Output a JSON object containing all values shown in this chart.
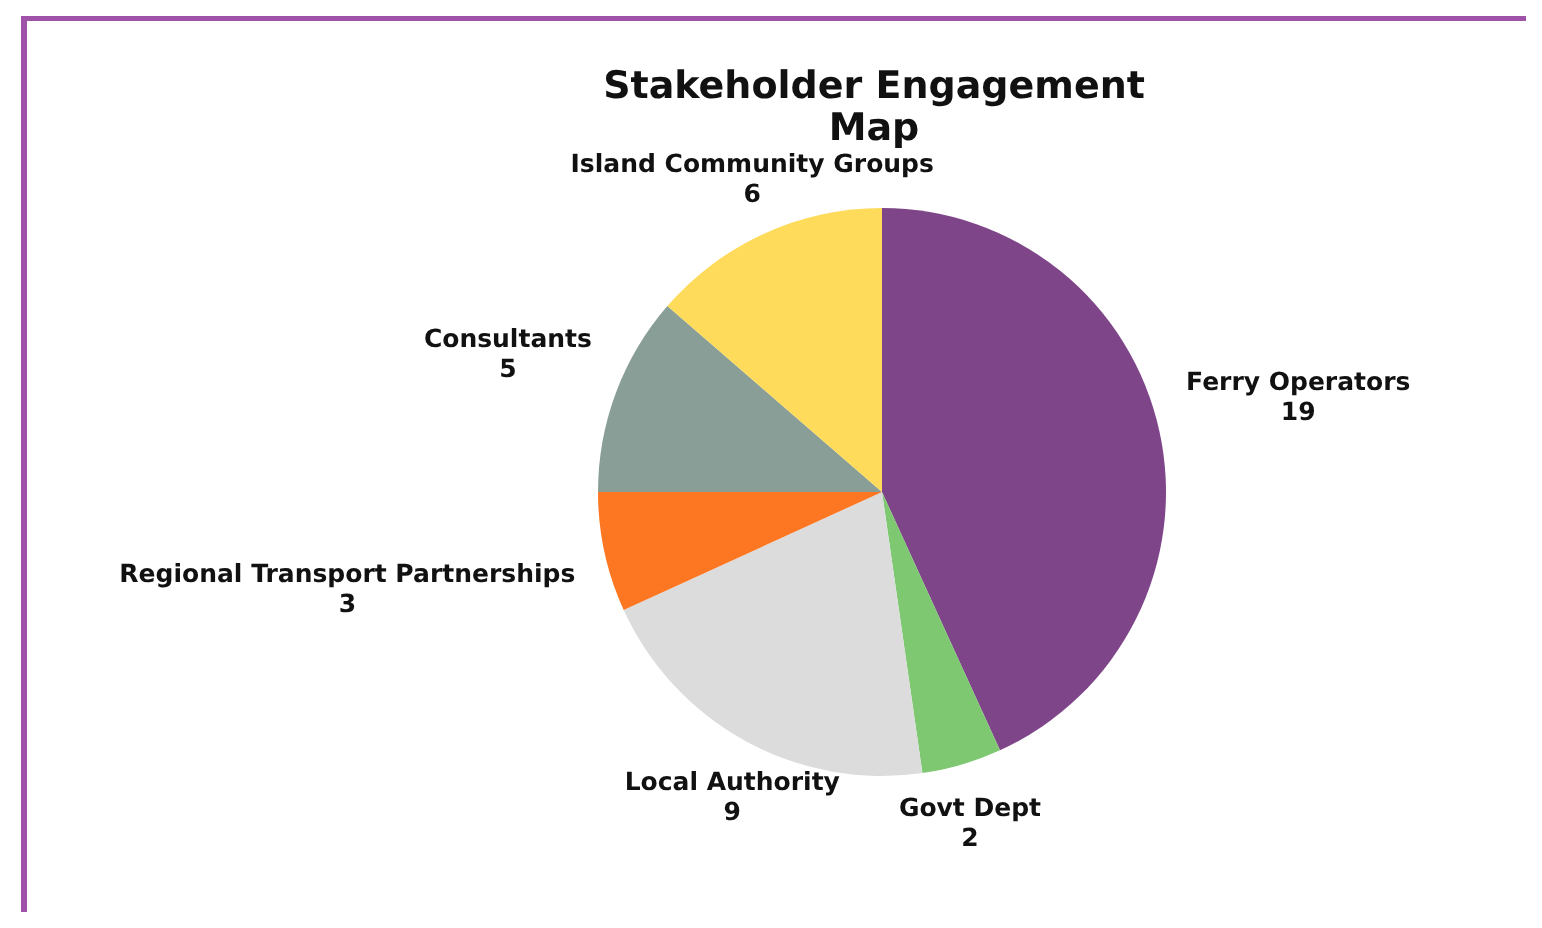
{
  "chart_data": {
    "type": "pie",
    "title": "Stakeholder Engagement Map",
    "categories": [
      "Ferry Operators",
      "Govt Dept",
      "Local Authority",
      "Regional Transport Partnerships",
      "Consultants",
      "Island Community Groups"
    ],
    "values": [
      19,
      2,
      9,
      3,
      5,
      6
    ],
    "colors": [
      "#7e4589",
      "#7dc870",
      "#dcdcdc",
      "#fd7722",
      "#889e96",
      "#fedb5a"
    ],
    "data_labels": true
  }
}
